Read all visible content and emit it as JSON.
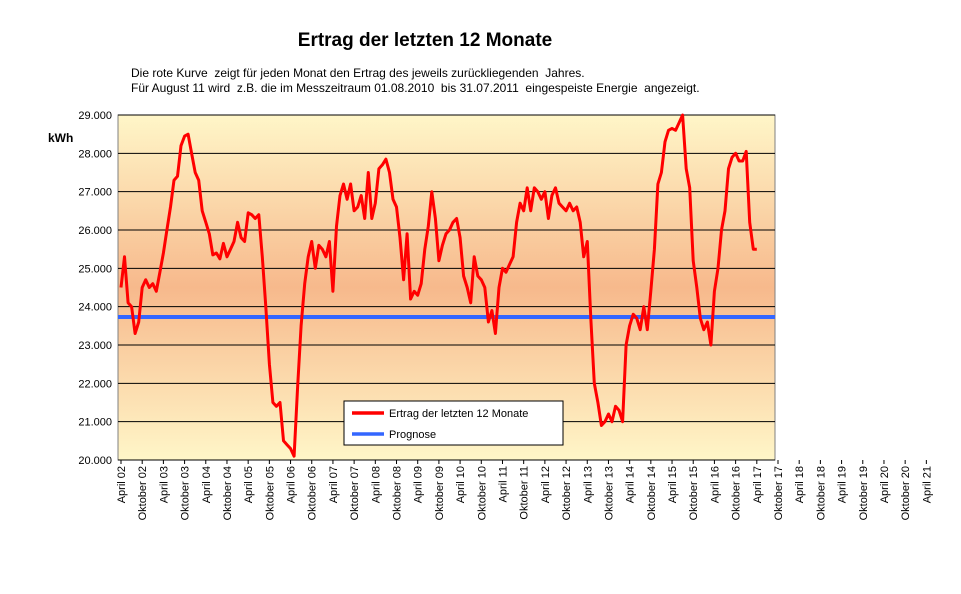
{
  "chart_data": {
    "type": "line",
    "title": "Ertrag der letzten 12 Monate",
    "subtitle_lines": [
      "Die rote Kurve  zeigt für jeden Monat den Ertrag des jeweils zurückliegenden  Jahres.",
      "Für August 11 wird  z.B. die im Messzeitraum 01.08.2010  bis 31.07.2011  eingespeiste Energie  angezeigt."
    ],
    "ylabel": "kWh",
    "ylim": [
      20000,
      29000
    ],
    "yticks": [
      "20.000",
      "21.000",
      "22.000",
      "23.000",
      "24.000",
      "25.000",
      "26.000",
      "27.000",
      "28.000",
      "29.000"
    ],
    "xticks": [
      "April 02",
      "Oktober 02",
      "April 03",
      "Oktober 03",
      "April 04",
      "Oktober 04",
      "April 05",
      "Oktober 05",
      "April 06",
      "Oktober 06",
      "April 07",
      "Oktober 07",
      "April 08",
      "Oktober 08",
      "April 09",
      "Oktober 09",
      "April 10",
      "Oktober 10",
      "April 11",
      "Oktober 11",
      "April 12",
      "Oktober 12",
      "April 13",
      "Oktober 13",
      "April 14",
      "Oktober 14",
      "April 15",
      "Oktober 15",
      "April 16",
      "Oktober 16",
      "April 17",
      "Oktober 17",
      "April 18",
      "Oktober 18",
      "April 19",
      "Oktober 19",
      "April 20",
      "Oktober 20",
      "April 21"
    ],
    "x_start": "2002-04",
    "grid": true,
    "legend_position": "bottom-center",
    "series": [
      {
        "name": "Ertrag der letzten 12 Monate",
        "color": "#ff0000",
        "values": [
          24500,
          25300,
          24100,
          24000,
          23300,
          23600,
          24500,
          24700,
          24500,
          24600,
          24400,
          24900,
          25400,
          26000,
          26600,
          27300,
          27400,
          28200,
          28450,
          28500,
          28000,
          27500,
          27300,
          26500,
          26200,
          25900,
          25350,
          25400,
          25250,
          25650,
          25300,
          25500,
          25700,
          26200,
          25800,
          25700,
          26450,
          26400,
          26300,
          26400,
          25300,
          24000,
          22500,
          21500,
          21400,
          21500,
          20500,
          20400,
          20300,
          20100,
          21900,
          23500,
          24600,
          25300,
          25700,
          25000,
          25600,
          25500,
          25300,
          25700,
          24400,
          26100,
          26900,
          27200,
          26800,
          27200,
          26500,
          26600,
          26900,
          26300,
          27500,
          26300,
          26700,
          27600,
          27700,
          27850,
          27500,
          26800,
          26600,
          25800,
          24700,
          25900,
          24200,
          24400,
          24300,
          24600,
          25500,
          26100,
          27000,
          26300,
          25200,
          25600,
          25900,
          26000,
          26200,
          26300,
          25800,
          24800,
          24500,
          24100,
          25300,
          24800,
          24700,
          24500,
          23600,
          23900,
          23300,
          24500,
          25000,
          24900,
          25100,
          25300,
          26200,
          26700,
          26500,
          27100,
          26500,
          27100,
          27000,
          26800,
          27000,
          26300,
          26900,
          27100,
          26700,
          26600,
          26500,
          26700,
          26500,
          26600,
          26200,
          25300,
          25700,
          23700,
          22000,
          21500,
          20900,
          21000,
          21200,
          21000,
          21400,
          21300,
          21000,
          23000,
          23500,
          23800,
          23700,
          23400,
          24000,
          23400,
          24400,
          25500,
          27200,
          27500,
          28300,
          28600,
          28650,
          28600,
          28800,
          29000,
          27600,
          27100,
          25200,
          24500,
          23700,
          23400,
          23600,
          23000,
          24400,
          25000,
          26000,
          26500,
          27600,
          27900,
          28000,
          27800,
          27800,
          28050,
          26200,
          25500,
          25500
        ]
      },
      {
        "name": "Prognose",
        "color": "#3366ff",
        "values": [
          23730,
          23730
        ]
      }
    ]
  }
}
